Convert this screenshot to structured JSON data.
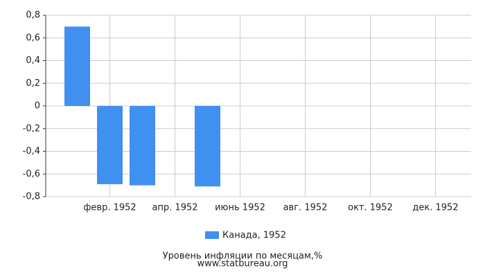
{
  "chart_data": {
    "type": "bar",
    "categories": [
      null,
      "февр. 1952",
      null,
      "апр. 1952",
      null,
      "июнь 1952",
      null,
      "авг. 1952",
      null,
      "окт. 1952",
      null,
      "дек. 1952"
    ],
    "series": [
      {
        "name": "Канада, 1952",
        "color": "#4090f0",
        "values": [
          0.7,
          -0.69,
          -0.7,
          null,
          -0.71,
          null,
          null,
          null,
          null,
          null,
          null,
          null
        ]
      }
    ],
    "ylim": [
      -0.8,
      0.8
    ],
    "yticks": [
      {
        "value": -0.8,
        "label": "-0,8"
      },
      {
        "value": -0.6,
        "label": "-0,6"
      },
      {
        "value": -0.4,
        "label": "-0,4"
      },
      {
        "value": -0.2,
        "label": "-0,2"
      },
      0,
      {
        "value": 0.2,
        "label": "0,2"
      },
      {
        "value": 0.4,
        "label": "0,4"
      },
      {
        "value": 0.6,
        "label": "0,6"
      },
      {
        "value": 0.8,
        "label": "0,8"
      }
    ],
    "grid": true,
    "legend": "bottom",
    "footer": [
      "Уровень инфляции по месяцам,%",
      "www.statbureau.org"
    ]
  }
}
